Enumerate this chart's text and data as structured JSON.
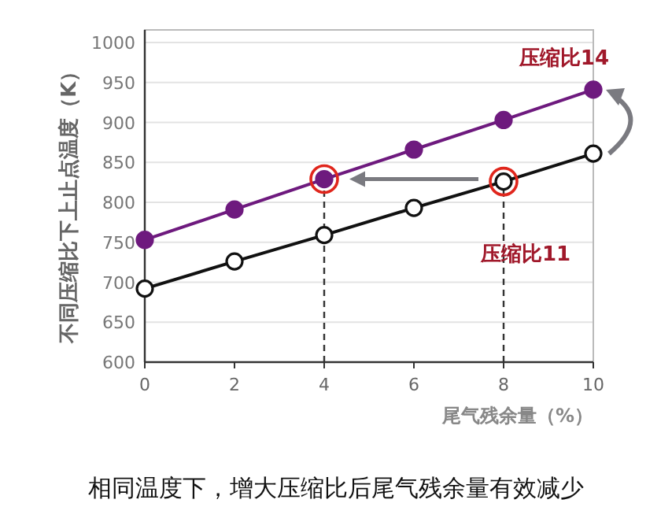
{
  "chart_data": {
    "type": "line",
    "xlabel": "尾气残余量（%）",
    "ylabel": "不同压缩比下上止点温度（K）",
    "x": [
      0,
      2,
      4,
      6,
      8,
      10
    ],
    "series": [
      {
        "name": "压缩比14",
        "color": "#6e1a7e",
        "values": [
          753,
          791,
          829,
          866,
          903,
          941
        ]
      },
      {
        "name": "压缩比11",
        "color": "#111111",
        "values": [
          692,
          726,
          759,
          793,
          826,
          861
        ]
      }
    ],
    "xlim": [
      0,
      10
    ],
    "xticks": [
      0,
      2,
      4,
      6,
      8,
      10
    ],
    "ylim": [
      600,
      1000
    ],
    "yticks": [
      600,
      650,
      700,
      750,
      800,
      850,
      900,
      950,
      1000
    ],
    "grid": "y",
    "marker": "circle",
    "line_style": "solid",
    "ref_lines": [
      {
        "axis": "x",
        "value": 4,
        "line_style": "dashed",
        "color": "#333333"
      },
      {
        "axis": "x",
        "value": 8,
        "line_style": "dashed",
        "color": "#333333"
      }
    ],
    "annotations": [
      "相同温度下，增大压缩比后尾气残余量有效减少"
    ]
  }
}
